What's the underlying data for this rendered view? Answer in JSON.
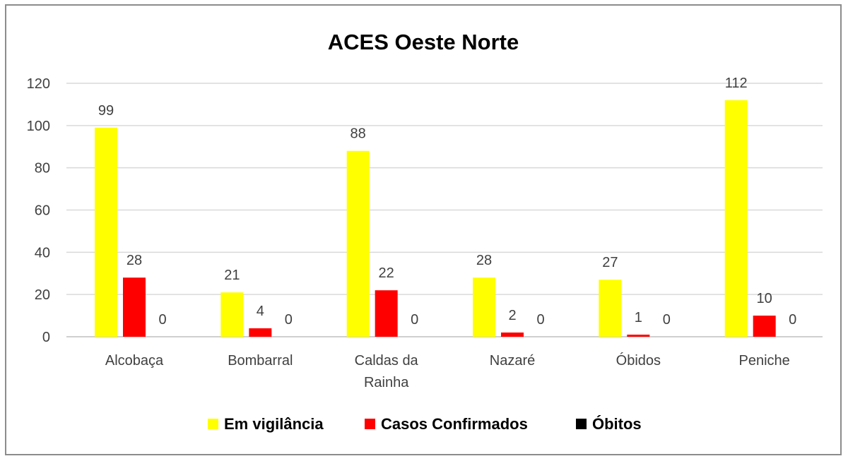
{
  "chart_data": {
    "type": "bar",
    "title": "ACES Oeste Norte",
    "categories": [
      [
        "Alcobaça"
      ],
      [
        "Bombarral"
      ],
      [
        "Caldas da",
        "Rainha"
      ],
      [
        "Nazaré"
      ],
      [
        "Óbidos"
      ],
      [
        "Peniche"
      ]
    ],
    "series": [
      {
        "name": "Em vigilância",
        "color": "#ffff00",
        "values": [
          99,
          21,
          88,
          28,
          27,
          112
        ]
      },
      {
        "name": "Casos Confirmados",
        "color": "#ff0000",
        "values": [
          28,
          4,
          22,
          2,
          1,
          10
        ]
      },
      {
        "name": "Óbitos",
        "color": "#000000",
        "values": [
          0,
          0,
          0,
          0,
          0,
          0
        ]
      }
    ],
    "ylim": [
      0,
      120
    ],
    "yticks": [
      0,
      20,
      40,
      60,
      80,
      100,
      120
    ],
    "grid": true,
    "legend_position": "bottom",
    "xlabel": "",
    "ylabel": ""
  }
}
